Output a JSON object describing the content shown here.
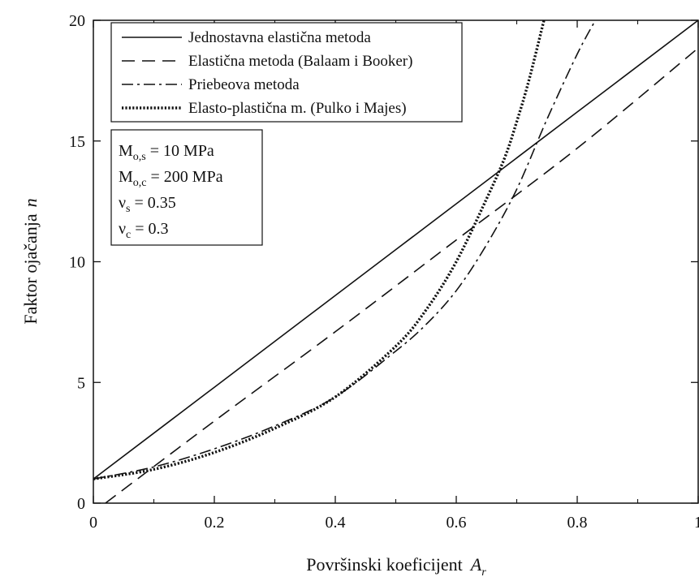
{
  "chart_data": {
    "type": "line",
    "xlabel": "Površinski koeficijent",
    "xlabel_symbol": "A",
    "xlabel_symbol_sub": "r",
    "ylabel": "Faktor ojačanja",
    "ylabel_symbol": "n",
    "xlim": [
      0,
      1
    ],
    "ylim": [
      0,
      20
    ],
    "x_ticks": [
      0,
      0.2,
      0.4,
      0.6,
      0.8,
      1
    ],
    "x_tick_labels": [
      "0",
      "0.2",
      "0.4",
      "0.6",
      "0.8",
      "1"
    ],
    "x_minor_ticks": [
      0.1,
      0.3,
      0.5,
      0.7,
      0.9
    ],
    "y_ticks": [
      0,
      5,
      10,
      15,
      20
    ],
    "y_tick_labels": [
      "0",
      "5",
      "10",
      "15",
      "20"
    ],
    "grid": false,
    "legend_position": "top-left",
    "series": [
      {
        "name": "Jednostavna elastična metoda",
        "dash": "solid",
        "x": [
          0,
          0.2,
          0.4,
          0.6,
          0.8,
          1.0
        ],
        "y": [
          1.0,
          4.8,
          8.6,
          12.4,
          16.2,
          20.0
        ]
      },
      {
        "name": "Elastična metoda (Balaam i Booker)",
        "dash": "dashed",
        "x": [
          0.02,
          0.2,
          0.4,
          0.6,
          0.8,
          1.0
        ],
        "y": [
          0.0,
          3.4,
          7.1,
          10.9,
          14.7,
          18.85
        ]
      },
      {
        "name": "Priebeova metoda",
        "dash": "dashdot",
        "x": [
          0,
          0.1,
          0.2,
          0.3,
          0.4,
          0.5,
          0.55,
          0.6,
          0.65,
          0.7,
          0.75,
          0.8,
          0.83
        ],
        "y": [
          1.0,
          1.5,
          2.25,
          3.2,
          4.4,
          6.3,
          7.4,
          8.8,
          10.7,
          13.0,
          15.9,
          18.6,
          20.0
        ]
      },
      {
        "name": "Elasto-plastična m. (Pulko i Majes)",
        "dash": "dotted",
        "x": [
          0,
          0.1,
          0.2,
          0.3,
          0.4,
          0.5,
          0.55,
          0.6,
          0.65,
          0.68,
          0.7,
          0.72,
          0.745
        ],
        "y": [
          1.0,
          1.4,
          2.1,
          3.1,
          4.4,
          6.5,
          8.0,
          10.0,
          12.6,
          14.3,
          15.8,
          17.5,
          20.0
        ]
      }
    ],
    "parameters": [
      {
        "base": "M",
        "sub": "o,s",
        "rest": " = 10 MPa"
      },
      {
        "base": "M",
        "sub": "o,c",
        "rest": " = 200 MPa"
      },
      {
        "base": "ν",
        "sub": "s",
        "rest": " = 0.35"
      },
      {
        "base": "ν",
        "sub": "c",
        "rest": " = 0.3"
      }
    ]
  }
}
